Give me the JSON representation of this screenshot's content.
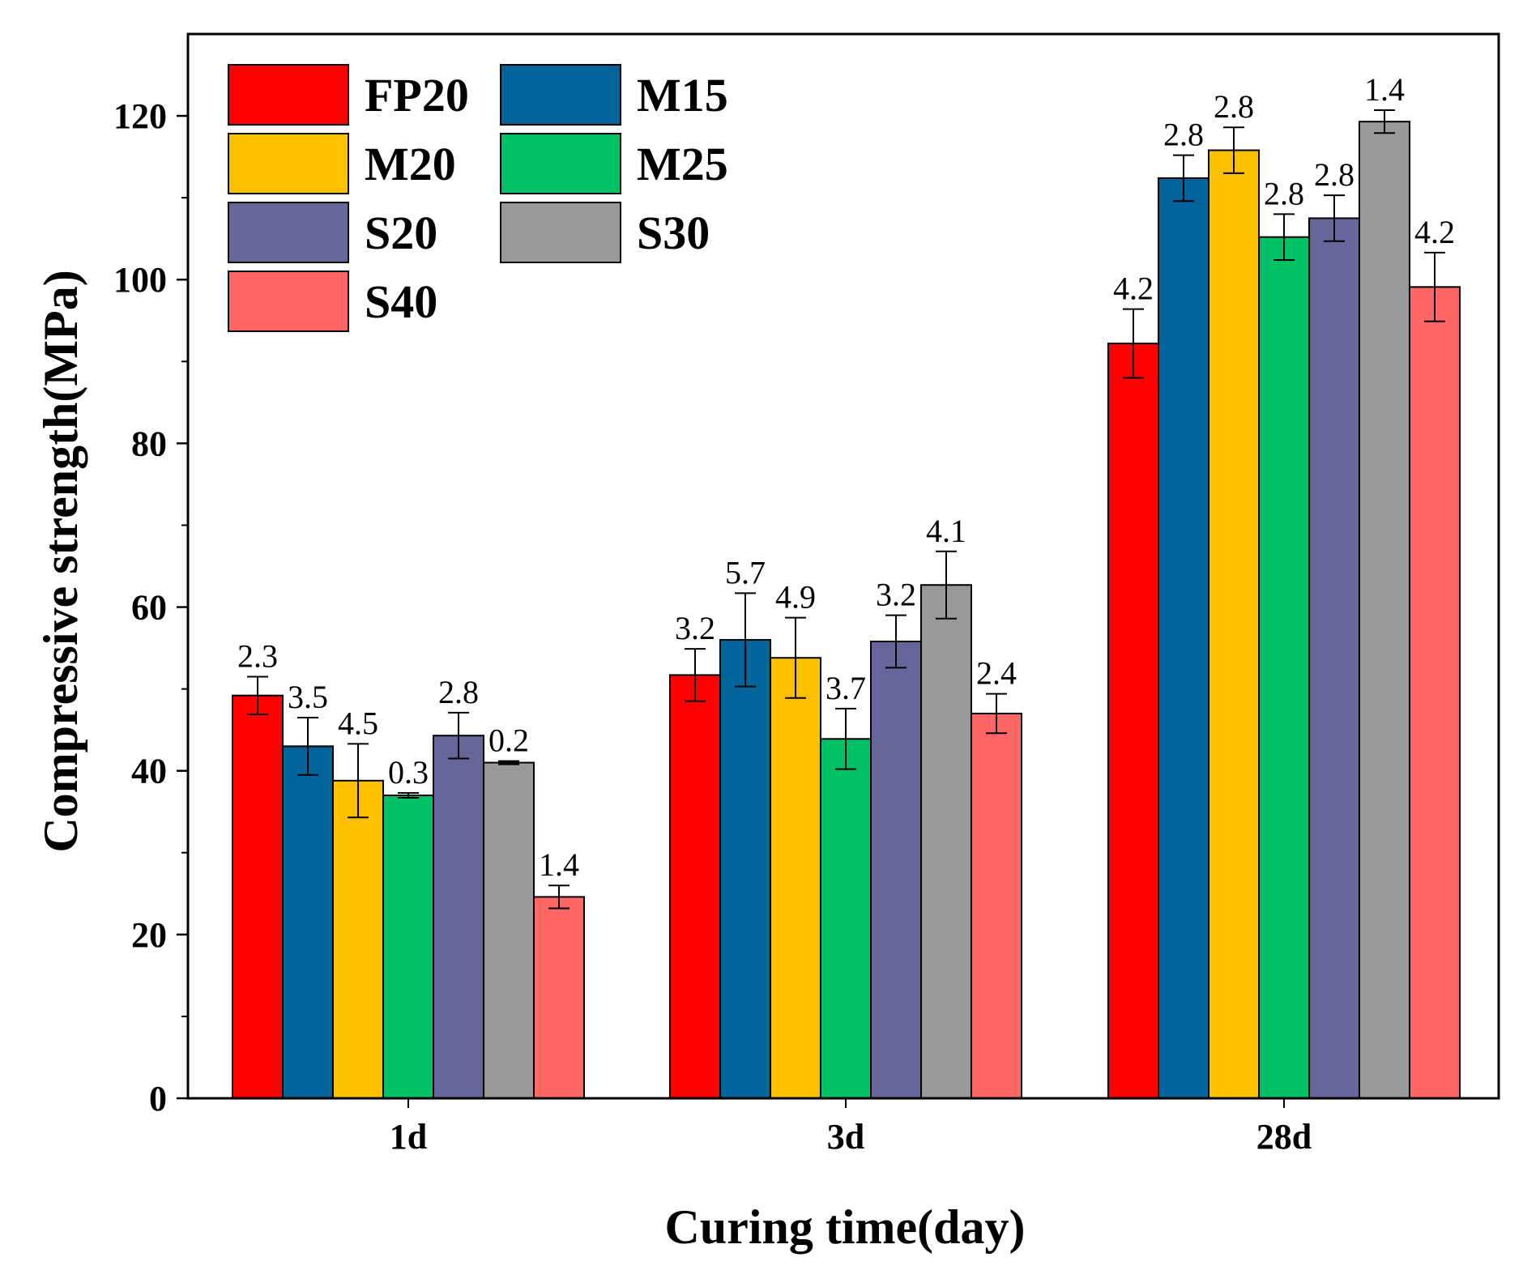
{
  "chart_data": {
    "type": "bar",
    "title": "",
    "xlabel": "Curing time(day)",
    "ylabel": "Compressive strength(MPa)",
    "categories": [
      "1d",
      "3d",
      "28d"
    ],
    "ylim": [
      0,
      130
    ],
    "yticks": [
      0,
      20,
      40,
      60,
      80,
      100,
      120
    ],
    "grid": false,
    "legend_position": "top-left",
    "series": [
      {
        "name": "FP20",
        "color": "#ff0000",
        "values": [
          49.2,
          51.7,
          92.2
        ],
        "errors": [
          2.3,
          3.2,
          4.2
        ],
        "labels": [
          "2.3",
          "3.2",
          "4.2"
        ]
      },
      {
        "name": "M15",
        "color": "#00649b",
        "values": [
          43.0,
          56.0,
          112.4
        ],
        "errors": [
          3.5,
          5.7,
          2.8
        ],
        "labels": [
          "3.5",
          "5.7",
          "2.8"
        ]
      },
      {
        "name": "M20",
        "color": "#ffc000",
        "values": [
          38.8,
          53.8,
          115.8
        ],
        "errors": [
          4.5,
          4.9,
          2.8
        ],
        "labels": [
          "4.5",
          "4.9",
          "2.8"
        ]
      },
      {
        "name": "M25",
        "color": "#00c066",
        "values": [
          37.0,
          43.9,
          105.2
        ],
        "errors": [
          0.3,
          3.7,
          2.8
        ],
        "labels": [
          "0.3",
          "3.7",
          "2.8"
        ]
      },
      {
        "name": "S20",
        "color": "#66669a",
        "values": [
          44.3,
          55.8,
          107.5
        ],
        "errors": [
          2.8,
          3.2,
          2.8
        ],
        "labels": [
          "2.8",
          "3.2",
          "2.8"
        ]
      },
      {
        "name": "S30",
        "color": "#999999",
        "values": [
          41.0,
          62.7,
          119.3
        ],
        "errors": [
          0.2,
          4.1,
          1.4
        ],
        "labels": [
          "0.2",
          "4.1",
          "1.4"
        ]
      },
      {
        "name": "S40",
        "color": "#ff6666",
        "values": [
          24.6,
          47.0,
          99.1
        ],
        "errors": [
          1.4,
          2.4,
          4.2
        ],
        "labels": [
          "1.4",
          "2.4",
          "4.2"
        ]
      }
    ]
  }
}
